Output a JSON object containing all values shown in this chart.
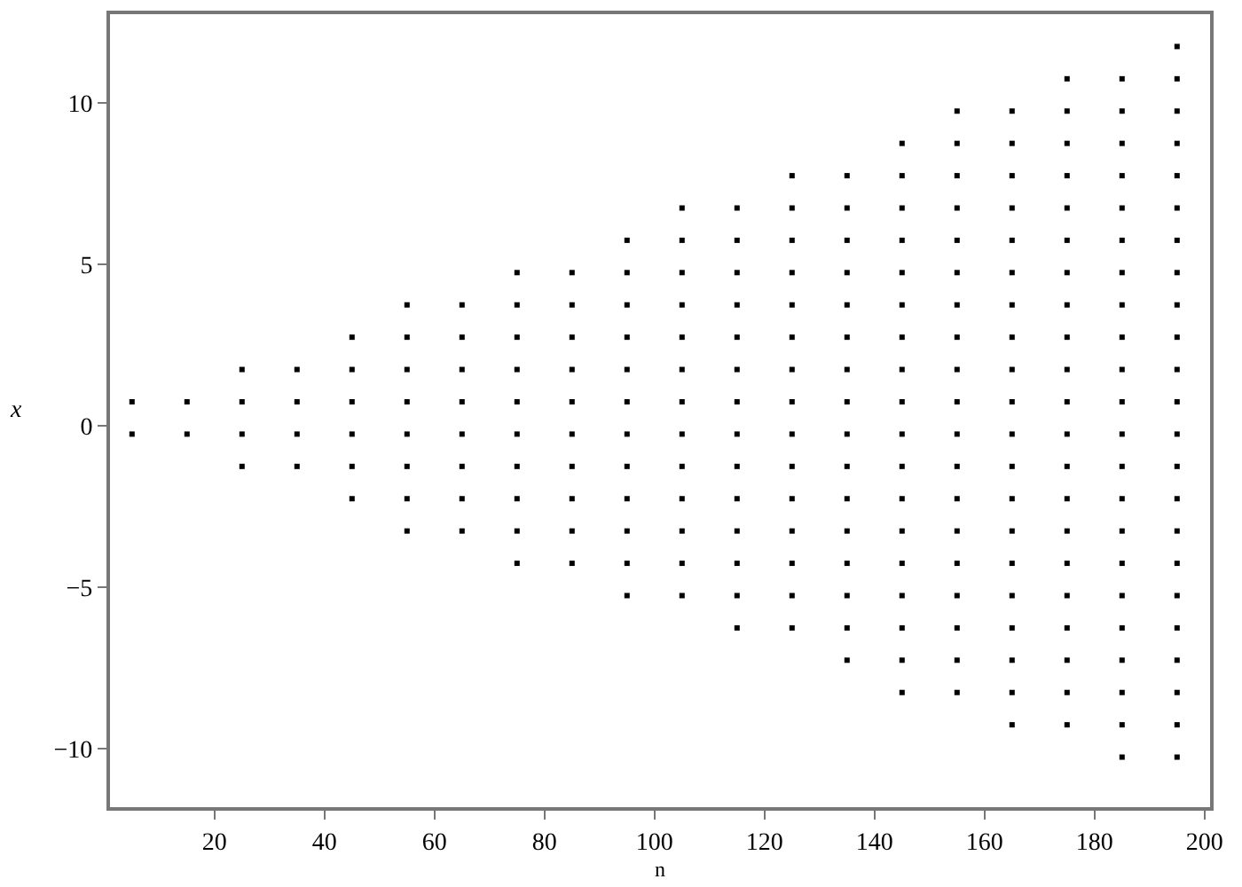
{
  "chart_data": {
    "type": "scatter",
    "xlabel": "n",
    "ylabel": "x",
    "xlim": [
      1,
      201
    ],
    "ylim": [
      -11.8,
      12.75
    ],
    "xticks": [
      20,
      40,
      60,
      80,
      100,
      120,
      140,
      160,
      180,
      200
    ],
    "yticks": [
      -10,
      -5,
      0,
      5,
      10
    ],
    "grid": false,
    "marker": "square",
    "series": [
      {
        "color": "#000000",
        "x": [
          5,
          5
        ],
        "values": [
          0.75,
          -0.25
        ]
      },
      {
        "color": "#000000",
        "x": [
          15,
          15
        ],
        "values": [
          0.75,
          -0.25
        ]
      },
      {
        "color": "#000000",
        "x": [
          25,
          25,
          25,
          25
        ],
        "values": [
          1.75,
          0.75,
          -0.25,
          -1.25
        ]
      },
      {
        "color": "#000000",
        "x": [
          35,
          35,
          35,
          35
        ],
        "values": [
          1.75,
          0.75,
          -0.25,
          -1.25
        ]
      },
      {
        "color": "#000000",
        "x": [
          45,
          45,
          45,
          45,
          45,
          45
        ],
        "values": [
          2.75,
          1.75,
          0.75,
          -0.25,
          -1.25,
          -2.25
        ]
      },
      {
        "color": "#000000",
        "x": [
          55,
          55,
          55,
          55,
          55,
          55,
          55,
          55
        ],
        "values": [
          3.75,
          2.75,
          1.75,
          0.75,
          -0.25,
          -1.25,
          -2.25,
          -3.25
        ]
      },
      {
        "color": "#000000",
        "x": [
          65,
          65,
          65,
          65,
          65,
          65,
          65,
          65
        ],
        "values": [
          3.75,
          2.75,
          1.75,
          0.75,
          -0.25,
          -1.25,
          -2.25,
          -3.25
        ]
      },
      {
        "color": "#000000",
        "x": [
          75,
          75,
          75,
          75,
          75,
          75,
          75,
          75,
          75,
          75
        ],
        "values": [
          4.75,
          3.75,
          2.75,
          1.75,
          0.75,
          -0.25,
          -1.25,
          -2.25,
          -3.25,
          -4.25
        ]
      },
      {
        "color": "#000000",
        "x": [
          85,
          85,
          85,
          85,
          85,
          85,
          85,
          85,
          85,
          85
        ],
        "values": [
          4.75,
          3.75,
          2.75,
          1.75,
          0.75,
          -0.25,
          -1.25,
          -2.25,
          -3.25,
          -4.25
        ]
      },
      {
        "color": "#000000",
        "x": [
          95,
          95,
          95,
          95,
          95,
          95,
          95,
          95,
          95,
          95,
          95,
          95
        ],
        "values": [
          5.75,
          4.75,
          3.75,
          2.75,
          1.75,
          0.75,
          -0.25,
          -1.25,
          -2.25,
          -3.25,
          -4.25,
          -5.25
        ]
      },
      {
        "color": "#000000",
        "x": [
          105,
          105,
          105,
          105,
          105,
          105,
          105,
          105,
          105,
          105,
          105,
          105,
          105
        ],
        "values": [
          6.75,
          5.75,
          4.75,
          3.75,
          2.75,
          1.75,
          0.75,
          -0.25,
          -1.25,
          -2.25,
          -3.25,
          -4.25,
          -5.25
        ]
      },
      {
        "color": "#000000",
        "x": [
          115,
          115,
          115,
          115,
          115,
          115,
          115,
          115,
          115,
          115,
          115,
          115,
          115,
          115
        ],
        "values": [
          6.75,
          5.75,
          4.75,
          3.75,
          2.75,
          1.75,
          0.75,
          -0.25,
          -1.25,
          -2.25,
          -3.25,
          -4.25,
          -5.25,
          -6.25
        ]
      },
      {
        "color": "#000000",
        "x": [
          125,
          125,
          125,
          125,
          125,
          125,
          125,
          125,
          125,
          125,
          125,
          125,
          125,
          125,
          125
        ],
        "values": [
          7.75,
          6.75,
          5.75,
          4.75,
          3.75,
          2.75,
          1.75,
          0.75,
          -0.25,
          -1.25,
          -2.25,
          -3.25,
          -4.25,
          -5.25,
          -6.25
        ]
      },
      {
        "color": "#000000",
        "x": [
          135,
          135,
          135,
          135,
          135,
          135,
          135,
          135,
          135,
          135,
          135,
          135,
          135,
          135,
          135,
          135
        ],
        "values": [
          7.75,
          6.75,
          5.75,
          4.75,
          3.75,
          2.75,
          1.75,
          0.75,
          -0.25,
          -1.25,
          -2.25,
          -3.25,
          -4.25,
          -5.25,
          -6.25,
          -7.25
        ]
      },
      {
        "color": "#000000",
        "x": [
          145,
          145,
          145,
          145,
          145,
          145,
          145,
          145,
          145,
          145,
          145,
          145,
          145,
          145,
          145,
          145,
          145,
          145
        ],
        "values": [
          8.75,
          7.75,
          6.75,
          5.75,
          4.75,
          3.75,
          2.75,
          1.75,
          0.75,
          -0.25,
          -1.25,
          -2.25,
          -3.25,
          -4.25,
          -5.25,
          -6.25,
          -7.25,
          -8.25
        ]
      },
      {
        "color": "#000000",
        "x": [
          155,
          155,
          155,
          155,
          155,
          155,
          155,
          155,
          155,
          155,
          155,
          155,
          155,
          155,
          155,
          155,
          155,
          155,
          155
        ],
        "values": [
          9.75,
          8.75,
          7.75,
          6.75,
          5.75,
          4.75,
          3.75,
          2.75,
          1.75,
          0.75,
          -0.25,
          -1.25,
          -2.25,
          -3.25,
          -4.25,
          -5.25,
          -6.25,
          -7.25,
          -8.25
        ]
      },
      {
        "color": "#000000",
        "x": [
          165,
          165,
          165,
          165,
          165,
          165,
          165,
          165,
          165,
          165,
          165,
          165,
          165,
          165,
          165,
          165,
          165,
          165,
          165,
          165
        ],
        "values": [
          9.75,
          8.75,
          7.75,
          6.75,
          5.75,
          4.75,
          3.75,
          2.75,
          1.75,
          0.75,
          -0.25,
          -1.25,
          -2.25,
          -3.25,
          -4.25,
          -5.25,
          -6.25,
          -7.25,
          -8.25,
          -9.25
        ]
      },
      {
        "color": "#000000",
        "x": [
          175,
          175,
          175,
          175,
          175,
          175,
          175,
          175,
          175,
          175,
          175,
          175,
          175,
          175,
          175,
          175,
          175,
          175,
          175,
          175,
          175
        ],
        "values": [
          10.75,
          9.75,
          8.75,
          7.75,
          6.75,
          5.75,
          4.75,
          3.75,
          2.75,
          1.75,
          0.75,
          -0.25,
          -1.25,
          -2.25,
          -3.25,
          -4.25,
          -5.25,
          -6.25,
          -7.25,
          -8.25,
          -9.25
        ]
      },
      {
        "color": "#000000",
        "x": [
          185,
          185,
          185,
          185,
          185,
          185,
          185,
          185,
          185,
          185,
          185,
          185,
          185,
          185,
          185,
          185,
          185,
          185,
          185,
          185,
          185,
          185
        ],
        "values": [
          10.75,
          9.75,
          8.75,
          7.75,
          6.75,
          5.75,
          4.75,
          3.75,
          2.75,
          1.75,
          0.75,
          -0.25,
          -1.25,
          -2.25,
          -3.25,
          -4.25,
          -5.25,
          -6.25,
          -7.25,
          -8.25,
          -9.25,
          -10.25
        ]
      },
      {
        "color": "#000000",
        "x": [
          195,
          195,
          195,
          195,
          195,
          195,
          195,
          195,
          195,
          195,
          195,
          195,
          195,
          195,
          195,
          195,
          195,
          195,
          195,
          195,
          195,
          195,
          195
        ],
        "values": [
          11.75,
          10.75,
          9.75,
          8.75,
          7.75,
          6.75,
          5.75,
          4.75,
          3.75,
          2.75,
          1.75,
          0.75,
          -0.25,
          -1.25,
          -2.25,
          -3.25,
          -4.25,
          -5.25,
          -6.25,
          -7.25,
          -8.25,
          -9.25,
          -10.25
        ]
      }
    ]
  }
}
